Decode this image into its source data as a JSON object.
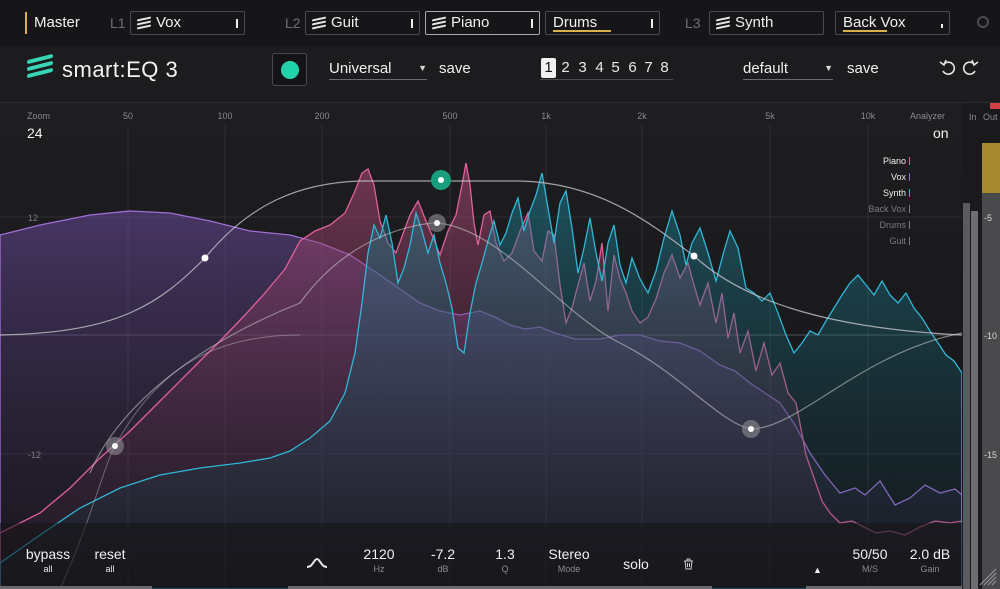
{
  "top": {
    "master": "Master",
    "groups": [
      {
        "label": "L1",
        "slots": [
          {
            "name": "Vox",
            "icon": "stripes-icon",
            "selected": false
          }
        ]
      },
      {
        "label": "L2",
        "slots": [
          {
            "name": "Guit",
            "icon": "stripes-icon",
            "selected": false
          },
          {
            "name": "Piano",
            "icon": "stripes-icon",
            "selected": true
          },
          {
            "name": "Drums",
            "icon": "",
            "selected": false,
            "underline": "#d9b14a"
          }
        ]
      },
      {
        "label": "L3",
        "slots": [
          {
            "name": "Synth",
            "icon": "stripes-icon",
            "selected": false
          },
          {
            "name": "Back Vox",
            "icon": "",
            "selected": false,
            "underline": "#d9b14a"
          }
        ]
      }
    ]
  },
  "header": {
    "brand": "smart:EQ 3",
    "profile": "Universal",
    "save_left": "save",
    "snapshots": [
      "1",
      "2",
      "3",
      "4",
      "5",
      "6",
      "7",
      "8"
    ],
    "active_snapshot": "1",
    "preset": "default",
    "save_right": "save"
  },
  "display": {
    "zoom_label": "Zoom",
    "zoom_value": "24",
    "analyzer_label": "Analyzer",
    "analyzer_value": "on",
    "freq_ticks": [
      "50",
      "100",
      "200",
      "500",
      "1k",
      "2k",
      "5k",
      "10k"
    ],
    "db_ticks": [
      "12",
      "-12"
    ],
    "meter_labels": [
      "In",
      "Out"
    ],
    "meter_scale": [
      "-5",
      "-10",
      "-15"
    ],
    "legend": [
      {
        "name": "Piano",
        "color": "#e0609b",
        "active": true
      },
      {
        "name": "Vox",
        "color": "#9d6ad9",
        "active": true
      },
      {
        "name": "Synth",
        "color": "#30b7d6",
        "active": true
      },
      {
        "name": "Back Vox",
        "color": "#8a8a8f",
        "active": false
      },
      {
        "name": "Drums",
        "color": "#8a8a8f",
        "active": false
      },
      {
        "name": "Guit",
        "color": "#8a8a8f",
        "active": false
      }
    ]
  },
  "bottom": {
    "bypass": {
      "label": "bypass",
      "sub": "all"
    },
    "reset": {
      "label": "reset",
      "sub": "all"
    },
    "hz": {
      "value": "2120",
      "unit": "Hz"
    },
    "db": {
      "value": "-7.2",
      "unit": "dB"
    },
    "q": {
      "value": "1.3",
      "unit": "Q"
    },
    "mode": {
      "value": "Stereo",
      "unit": "Mode"
    },
    "solo": "solo",
    "ms": {
      "value": "50/50",
      "unit": "M/S"
    },
    "gain": {
      "value": "2.0 dB",
      "unit": "Gain"
    }
  },
  "colors": {
    "accent": "#22d3aa",
    "piano": "#e0609b",
    "vox": "#9d6ad9",
    "synth": "#30b7d6",
    "gold": "#d9b14a"
  }
}
